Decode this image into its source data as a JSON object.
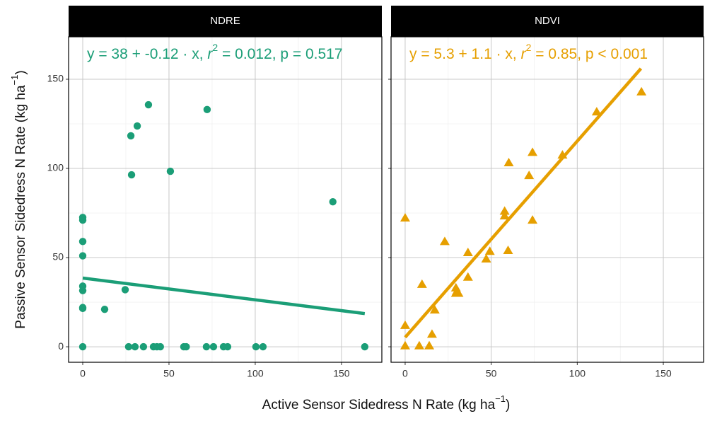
{
  "chart_data": [
    {
      "type": "scatter",
      "strip": "NDRE",
      "color": "#1b9e77",
      "marker": "circle",
      "annotation": {
        "equation": "y = 38 + -0.12 · x,  ",
        "r": "r",
        "r_power": "2",
        "stats": " = 0.012, p = 0.517"
      },
      "x": [
        0,
        0,
        0,
        0,
        0,
        0,
        0,
        0,
        0,
        12.7,
        24.6,
        26.6,
        30.3,
        35.2,
        41,
        43,
        45,
        58.6,
        60,
        71.7,
        75.8,
        81.6,
        84,
        100.4,
        104.5,
        163.5,
        27.9,
        28.3,
        31.6,
        38.1,
        50.8,
        72.1,
        145
      ],
      "values": [
        0,
        21.5,
        22,
        31.5,
        34,
        51,
        59,
        71,
        72.5,
        21,
        32,
        0,
        0,
        0,
        0,
        0,
        0,
        0,
        0,
        0,
        0,
        0,
        0,
        0,
        0,
        0,
        118.3,
        96.4,
        123.8,
        135.7,
        98.4,
        133,
        81.3
      ],
      "fit": {
        "x": [
          0,
          163.5
        ],
        "values": [
          38.5,
          18.6
        ]
      },
      "xlim": [
        -8.2,
        173.4
      ],
      "ylim": [
        -8.7,
        173.8
      ],
      "xticks": [
        0,
        50,
        100,
        150
      ],
      "yticks": [
        0,
        50,
        100,
        150
      ],
      "minor_xticks": [
        25,
        75,
        125
      ],
      "minor_yticks": [
        25,
        75,
        125
      ],
      "grid": true
    },
    {
      "type": "scatter",
      "strip": "NDVI",
      "color": "#e69f00",
      "marker": "triangle",
      "annotation": {
        "equation": "y = 5.3 + 1.1 · x,  ",
        "r": "r",
        "r_power": "2",
        "stats": " = 0.85, p < 0.001"
      },
      "x": [
        0,
        0,
        0,
        8.2,
        9.8,
        14,
        15.6,
        17.2,
        23,
        29.5,
        29.5,
        30,
        31,
        36.5,
        36.5,
        47.1,
        49.2,
        57.8,
        57.8,
        59.8,
        60.2,
        72,
        74,
        74,
        91.4,
        111.3,
        137.3
      ],
      "values": [
        72.2,
        12,
        0.5,
        0.5,
        35,
        0.5,
        7,
        20.6,
        59,
        30,
        33,
        31,
        30,
        39,
        52.8,
        49.2,
        53.5,
        73.4,
        76,
        54,
        103.2,
        96,
        71,
        109,
        107.5,
        131.7,
        142.9
      ],
      "fit": {
        "x": [
          0,
          137
        ],
        "values": [
          5.3,
          156
        ]
      },
      "xlim": [
        -8.2,
        173.4
      ],
      "ylim": [
        -8.7,
        173.8
      ],
      "xticks": [
        0,
        50,
        100,
        150
      ],
      "yticks": [
        0,
        50,
        100,
        150
      ],
      "minor_xticks": [
        25,
        75,
        125
      ],
      "minor_yticks": [
        25,
        75,
        125
      ],
      "grid": true
    }
  ],
  "axes": {
    "xlabel": {
      "text": "Active Sensor Sidedress N Rate (kg ha",
      "power": "−1",
      "close": ")"
    },
    "ylabel": {
      "text": "Passive Sensor Sidedress N Rate (kg ha",
      "power": "−1",
      "close": ")"
    }
  }
}
